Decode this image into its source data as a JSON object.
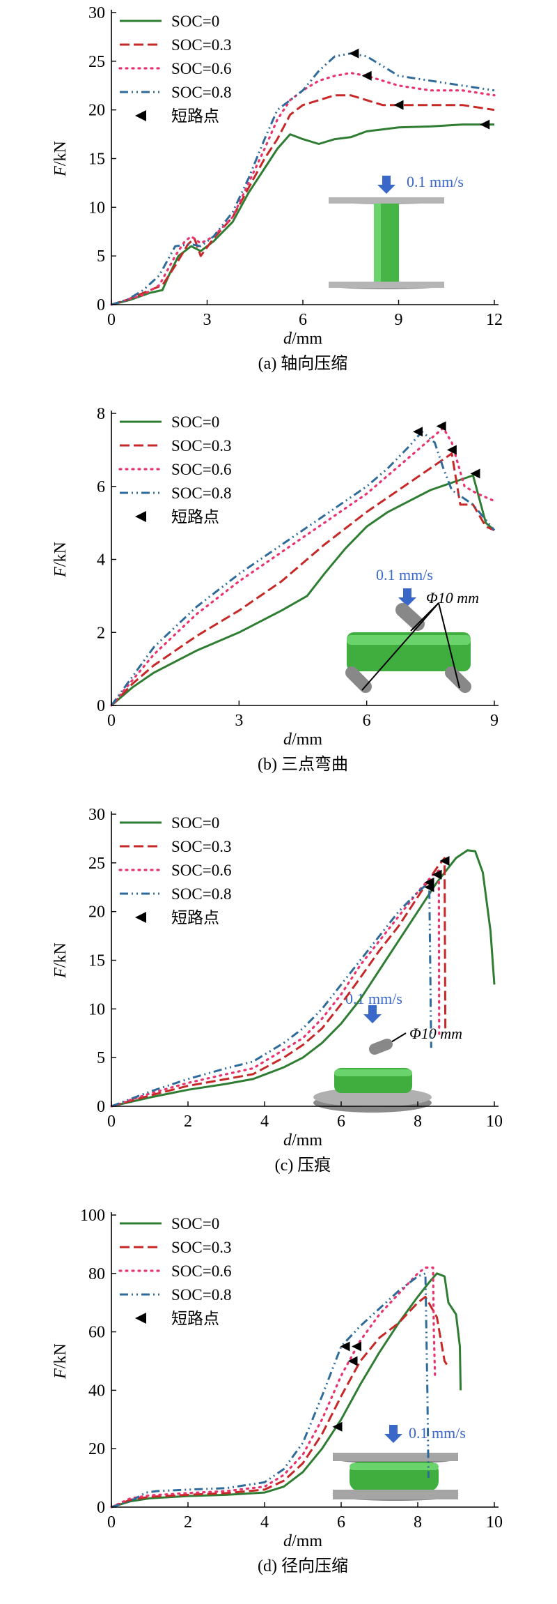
{
  "figure": {
    "series_colors": [
      "#2e7d32",
      "#c62828",
      "#e8336d",
      "#2f6b9a"
    ],
    "marker_label": "短路点",
    "speed_label": "0.1 mm/s",
    "diameter_label": "Φ10 mm",
    "icon_names": [
      "down-arrow-icon",
      "short-circuit-marker-icon"
    ]
  },
  "chart_data": [
    {
      "type": "line",
      "caption": "(a) 轴向压缩",
      "xlabel_var": "d",
      "xlabel_unit": "/mm",
      "ylabel_var": "F",
      "ylabel_unit": "/kN",
      "xlim": [
        0,
        12
      ],
      "ylim": [
        0,
        30
      ],
      "xticks": [
        0,
        3,
        6,
        9,
        12
      ],
      "yticks": [
        0,
        5,
        10,
        15,
        20,
        25,
        30
      ],
      "legend_position": "top-left",
      "inset": "axial",
      "series": [
        {
          "name": "SOC=0",
          "x": [
            0,
            0.6,
            1.2,
            1.6,
            1.8,
            2.1,
            2.5,
            2.8,
            3.2,
            3.8,
            4.3,
            4.8,
            5.2,
            5.6,
            6.0,
            6.5,
            7.0,
            7.5,
            8.0,
            8.5,
            9.0,
            10.0,
            11.0,
            12.0
          ],
          "y": [
            0,
            0.5,
            1.2,
            1.5,
            3.0,
            5.0,
            6.0,
            5.5,
            6.5,
            8.5,
            11.5,
            14.0,
            16.0,
            17.5,
            17.0,
            16.5,
            17.0,
            17.2,
            17.8,
            18.0,
            18.2,
            18.3,
            18.5,
            18.5
          ],
          "markers": [
            {
              "x": 11.7,
              "y": 18.5
            }
          ]
        },
        {
          "name": "SOC=0.3",
          "x": [
            0,
            0.5,
            1.0,
            1.6,
            2.0,
            2.4,
            2.6,
            2.8,
            3.2,
            3.8,
            4.3,
            4.8,
            5.2,
            5.6,
            6.0,
            6.5,
            7.0,
            7.5,
            8.0,
            8.5,
            9.0,
            10.0,
            11.0,
            12.0
          ],
          "y": [
            0,
            0.5,
            1.2,
            2.0,
            4.0,
            6.2,
            6.8,
            5.0,
            6.8,
            9.0,
            12.0,
            15.0,
            17.0,
            19.5,
            20.5,
            21.0,
            21.5,
            21.5,
            21.0,
            20.5,
            20.5,
            20.5,
            20.5,
            20.0
          ],
          "markers": [
            {
              "x": 9.0,
              "y": 20.5
            }
          ]
        },
        {
          "name": "SOC=0.6",
          "x": [
            0,
            0.5,
            1.0,
            1.5,
            2.0,
            2.3,
            2.5,
            2.8,
            3.2,
            3.8,
            4.3,
            4.8,
            5.2,
            5.6,
            6.0,
            6.5,
            7.0,
            7.5,
            8.0,
            8.5,
            9.0,
            10.0,
            11.0,
            12.0
          ],
          "y": [
            0,
            0.5,
            1.0,
            2.0,
            5.0,
            6.5,
            7.0,
            6.3,
            7.0,
            9.0,
            12.5,
            16.0,
            19.0,
            21.0,
            22.0,
            23.0,
            23.5,
            23.8,
            23.5,
            23.0,
            22.5,
            22.0,
            22.0,
            21.5
          ],
          "markers": [
            {
              "x": 8.0,
              "y": 23.5
            }
          ]
        },
        {
          "name": "SOC=0.8",
          "x": [
            0,
            0.5,
            1.0,
            1.5,
            2.0,
            2.5,
            2.8,
            3.2,
            3.8,
            4.3,
            4.8,
            5.2,
            5.6,
            6.0,
            6.5,
            7.0,
            7.5,
            8.0,
            8.5,
            9.0,
            10.0,
            11.0,
            12.0
          ],
          "y": [
            0,
            0.5,
            1.5,
            3.0,
            6.0,
            6.2,
            6.0,
            7.0,
            9.5,
            13.0,
            17.0,
            20.0,
            21.0,
            22.0,
            24.0,
            25.5,
            25.8,
            25.5,
            24.5,
            23.5,
            23.0,
            22.5,
            22.0
          ],
          "markers": [
            {
              "x": 7.6,
              "y": 25.8
            }
          ]
        }
      ]
    },
    {
      "type": "line",
      "caption": "(b) 三点弯曲",
      "xlabel_var": "d",
      "xlabel_unit": "/mm",
      "ylabel_var": "F",
      "ylabel_unit": "/kN",
      "xlim": [
        0,
        9
      ],
      "ylim": [
        0,
        8
      ],
      "xticks": [
        0,
        3,
        6,
        9
      ],
      "yticks": [
        0,
        2,
        4,
        6,
        8
      ],
      "legend_position": "top-left",
      "inset": "bending",
      "series": [
        {
          "name": "SOC=0",
          "x": [
            0,
            0.5,
            1.0,
            2.0,
            3.0,
            4.0,
            4.6,
            5.0,
            5.5,
            6.0,
            6.5,
            7.0,
            7.5,
            8.0,
            8.5,
            8.8,
            9.0
          ],
          "y": [
            0,
            0.5,
            0.9,
            1.5,
            2.0,
            2.6,
            3.0,
            3.6,
            4.3,
            4.9,
            5.3,
            5.6,
            5.9,
            6.1,
            6.3,
            5.0,
            4.8
          ],
          "markers": [
            {
              "x": 8.55,
              "y": 6.35
            }
          ]
        },
        {
          "name": "SOC=0.3",
          "x": [
            0,
            0.5,
            1.0,
            2.0,
            3.0,
            4.0,
            5.0,
            6.0,
            6.5,
            7.0,
            7.5,
            8.0,
            8.2,
            8.5,
            8.8,
            9.0
          ],
          "y": [
            0,
            0.6,
            1.1,
            1.9,
            2.6,
            3.4,
            4.4,
            5.3,
            5.7,
            6.1,
            6.5,
            6.9,
            5.5,
            5.5,
            4.9,
            4.8
          ],
          "markers": [
            {
              "x": 8.0,
              "y": 7.0
            }
          ]
        },
        {
          "name": "SOC=0.6",
          "x": [
            0,
            0.5,
            1.0,
            2.0,
            3.0,
            4.0,
            5.0,
            6.0,
            6.5,
            7.0,
            7.5,
            7.8,
            8.0,
            8.3,
            8.6,
            9.0
          ],
          "y": [
            0,
            0.7,
            1.4,
            2.5,
            3.4,
            4.2,
            5.0,
            5.8,
            6.3,
            6.8,
            7.3,
            7.6,
            7.2,
            6.0,
            5.8,
            5.6
          ],
          "markers": [
            {
              "x": 7.75,
              "y": 7.65
            }
          ]
        },
        {
          "name": "SOC=0.8",
          "x": [
            0,
            0.5,
            1.0,
            2.0,
            3.0,
            4.0,
            5.0,
            6.0,
            6.5,
            7.0,
            7.3,
            7.6,
            7.8,
            8.0,
            8.5,
            9.0
          ],
          "y": [
            0,
            0.8,
            1.6,
            2.7,
            3.6,
            4.4,
            5.2,
            6.0,
            6.5,
            7.1,
            7.5,
            7.2,
            6.5,
            5.9,
            5.5,
            4.8
          ],
          "markers": [
            {
              "x": 7.2,
              "y": 7.5
            }
          ]
        }
      ]
    },
    {
      "type": "line",
      "caption": "(c) 压痕",
      "xlabel_var": "d",
      "xlabel_unit": "/mm",
      "ylabel_var": "F",
      "ylabel_unit": "/kN",
      "xlim": [
        0,
        10
      ],
      "ylim": [
        0,
        30
      ],
      "xticks": [
        0,
        2,
        4,
        6,
        8,
        10
      ],
      "yticks": [
        0,
        5,
        10,
        15,
        20,
        25,
        30
      ],
      "legend_position": "top-left",
      "inset": "indentation",
      "series": [
        {
          "name": "SOC=0",
          "x": [
            0,
            1.0,
            2.0,
            3.0,
            3.7,
            4.5,
            5.0,
            5.5,
            6.0,
            6.5,
            7.0,
            7.5,
            8.0,
            8.5,
            9.0,
            9.3,
            9.5,
            9.7,
            9.9,
            10.0
          ],
          "y": [
            0,
            0.9,
            1.7,
            2.3,
            2.8,
            4.0,
            5.0,
            6.5,
            8.5,
            11.0,
            14.0,
            17.0,
            20.0,
            23.0,
            25.5,
            26.3,
            26.2,
            24.0,
            18.0,
            12.5
          ],
          "markers": [
            {
              "x": 8.3,
              "y": 22.5
            }
          ]
        },
        {
          "name": "SOC=0.3",
          "x": [
            0,
            1.0,
            2.0,
            3.0,
            3.7,
            4.5,
            5.0,
            5.5,
            6.0,
            6.5,
            7.0,
            7.5,
            8.0,
            8.5,
            8.7,
            8.72
          ],
          "y": [
            0,
            1.1,
            2.1,
            2.8,
            3.3,
            5.0,
            6.3,
            8.0,
            10.5,
            13.2,
            16.0,
            18.5,
            21.5,
            24.5,
            25.5,
            8.0
          ],
          "markers": [
            {
              "x": 8.7,
              "y": 25.2
            }
          ]
        },
        {
          "name": "SOC=0.6",
          "x": [
            0,
            1.0,
            2.0,
            3.0,
            3.7,
            4.5,
            5.0,
            5.5,
            6.0,
            6.5,
            7.0,
            7.5,
            8.0,
            8.4,
            8.55,
            8.56
          ],
          "y": [
            0,
            1.3,
            2.4,
            3.3,
            3.9,
            5.8,
            7.0,
            9.0,
            11.5,
            14.5,
            17.0,
            19.5,
            22.0,
            23.8,
            24.2,
            7.0
          ],
          "markers": [
            {
              "x": 8.5,
              "y": 23.8
            }
          ]
        },
        {
          "name": "SOC=0.8",
          "x": [
            0,
            1.0,
            2.0,
            3.0,
            3.7,
            4.5,
            5.0,
            5.5,
            6.0,
            6.5,
            7.0,
            7.5,
            8.0,
            8.3,
            8.35
          ],
          "y": [
            0,
            1.5,
            2.8,
            3.9,
            4.6,
            6.5,
            8.0,
            10.0,
            12.5,
            15.0,
            17.5,
            20.0,
            22.0,
            23.0,
            6.0
          ],
          "markers": [
            {
              "x": 8.3,
              "y": 23.0
            }
          ]
        }
      ]
    },
    {
      "type": "line",
      "caption": "(d) 径向压缩",
      "xlabel_var": "d",
      "xlabel_unit": "/mm",
      "ylabel_var": "F",
      "ylabel_unit": "/kN",
      "xlim": [
        0,
        10
      ],
      "ylim": [
        0,
        100
      ],
      "xticks": [
        0,
        2,
        4,
        6,
        8,
        10
      ],
      "yticks": [
        0,
        20,
        40,
        60,
        80,
        100
      ],
      "legend_position": "top-left",
      "inset": "radial",
      "series": [
        {
          "name": "SOC=0",
          "x": [
            0,
            0.5,
            1.0,
            2.0,
            3.0,
            4.0,
            4.5,
            5.0,
            5.5,
            6.0,
            6.5,
            7.0,
            7.5,
            8.0,
            8.3,
            8.5,
            8.7,
            8.8,
            9.0,
            9.1,
            9.12
          ],
          "y": [
            0,
            2.0,
            3.0,
            3.8,
            4.2,
            5.0,
            7.0,
            12.0,
            20.0,
            30.0,
            42.0,
            53.0,
            63.0,
            72.0,
            77.0,
            80.0,
            79.0,
            70.0,
            66.0,
            55.0,
            40.0
          ],
          "markers": [
            {
              "x": 5.9,
              "y": 27.5
            }
          ]
        },
        {
          "name": "SOC=0.3",
          "x": [
            0,
            0.5,
            1.0,
            2.0,
            3.0,
            4.0,
            4.5,
            5.0,
            5.5,
            6.0,
            6.5,
            7.0,
            7.5,
            8.0,
            8.2,
            8.5,
            8.7,
            8.8
          ],
          "y": [
            0,
            2.5,
            3.5,
            4.2,
            4.8,
            6.0,
            9.0,
            15.0,
            25.0,
            38.0,
            50.0,
            58.0,
            63.0,
            70.0,
            72.0,
            65.0,
            50.0,
            48.0
          ],
          "markers": [
            {
              "x": 6.3,
              "y": 50.0
            }
          ]
        },
        {
          "name": "SOC=0.6",
          "x": [
            0,
            0.5,
            1.0,
            2.0,
            3.0,
            4.0,
            4.5,
            5.0,
            5.5,
            6.0,
            6.5,
            7.0,
            7.5,
            8.0,
            8.2,
            8.4,
            8.42,
            8.45
          ],
          "y": [
            0,
            3.0,
            4.0,
            4.8,
            5.5,
            7.0,
            11.0,
            18.0,
            30.0,
            45.0,
            57.0,
            66.0,
            73.0,
            80.0,
            82.0,
            82.0,
            60.0,
            45.0
          ],
          "markers": [
            {
              "x": 6.4,
              "y": 55.0
            }
          ]
        },
        {
          "name": "SOC=0.8",
          "x": [
            0,
            0.5,
            0.9,
            1.2,
            2.0,
            3.0,
            4.0,
            4.5,
            5.0,
            5.5,
            6.0,
            6.5,
            7.0,
            7.5,
            8.0,
            8.2,
            8.25,
            8.28
          ],
          "y": [
            0,
            2.0,
            5.0,
            5.5,
            6.0,
            6.5,
            8.5,
            13.0,
            22.0,
            38.0,
            55.0,
            62.0,
            68.0,
            74.0,
            79.0,
            80.0,
            40.0,
            10.0
          ],
          "markers": [
            {
              "x": 6.1,
              "y": 55.0
            }
          ]
        }
      ]
    }
  ]
}
